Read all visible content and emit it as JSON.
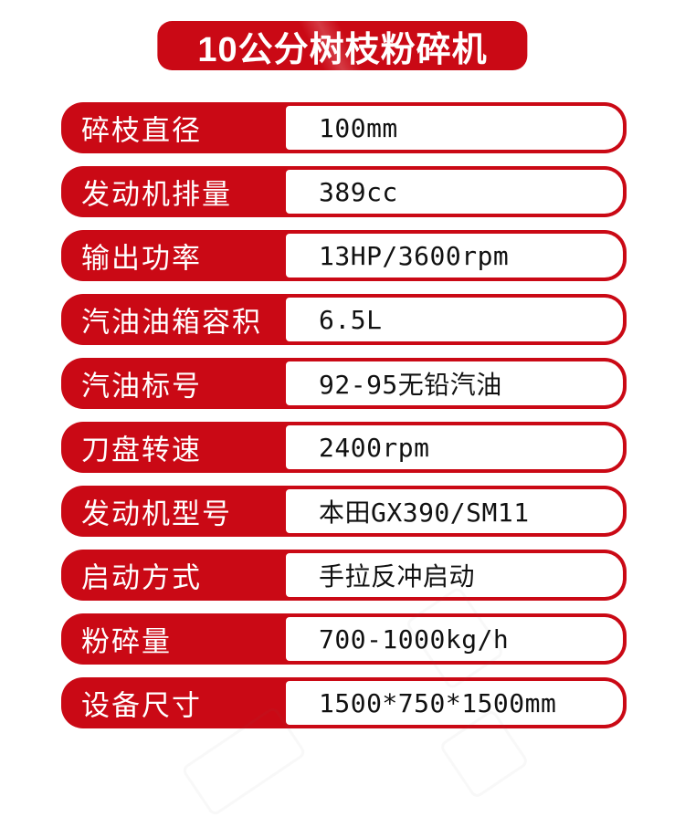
{
  "theme": {
    "red": "#ca0915",
    "value_text_color": "#111111",
    "label_text_color": "#ffffff",
    "background": "#ffffff"
  },
  "title": {
    "text": "10公分树枝粉碎机"
  },
  "specs": [
    {
      "label": "碎枝直径",
      "value": "100mm"
    },
    {
      "label": "发动机排量",
      "value": "389cc"
    },
    {
      "label": "输出功率",
      "value": "13HP/3600rpm"
    },
    {
      "label": "汽油油箱容积",
      "value": "6.5L"
    },
    {
      "label": "汽油标号",
      "value": "92-95无铅汽油"
    },
    {
      "label": "刀盘转速",
      "value": "2400rpm"
    },
    {
      "label": "发动机型号",
      "value": "本田GX390/SM11"
    },
    {
      "label": "启动方式",
      "value": "手拉反冲启动"
    },
    {
      "label": "粉碎量",
      "value": "700-1000kg/h"
    },
    {
      "label": "设备尺寸",
      "value": "1500*750*1500mm"
    }
  ]
}
